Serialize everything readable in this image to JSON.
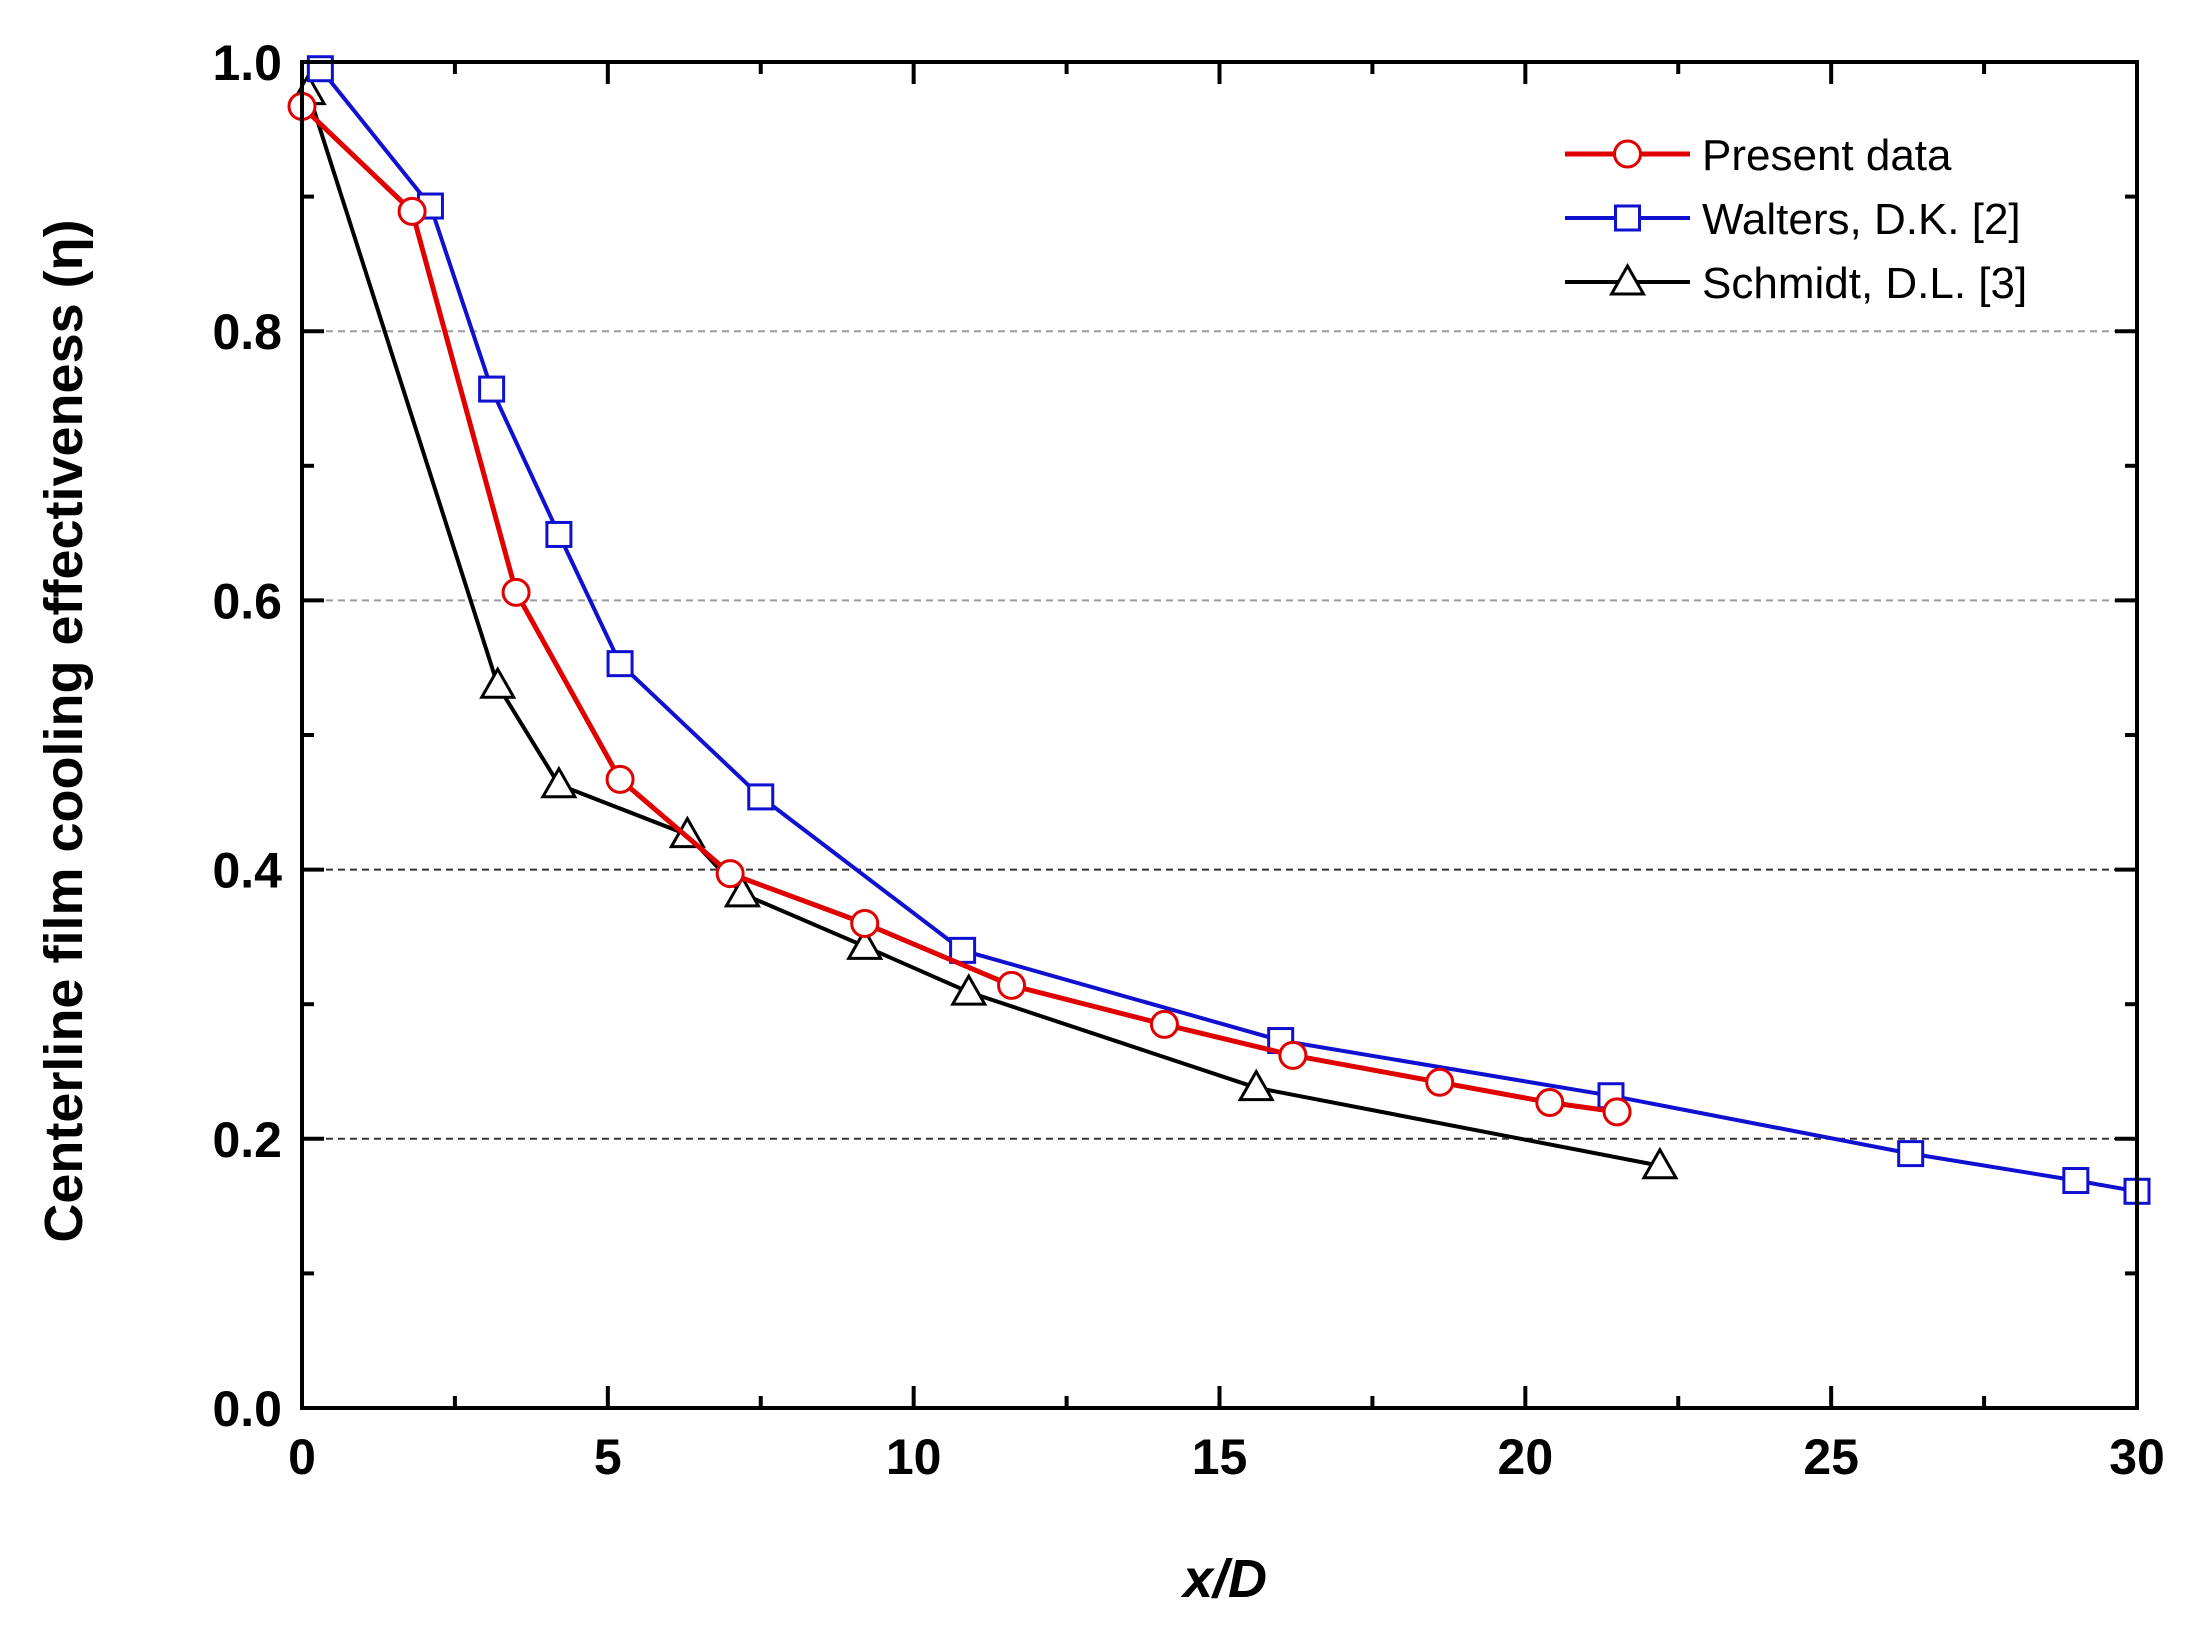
{
  "chart_data": {
    "type": "line",
    "title": "",
    "xlabel": "x/D",
    "ylabel": "Centerline film cooling effectiveness (η)",
    "xlim": [
      0,
      30
    ],
    "ylim": [
      0.0,
      1.0
    ],
    "x_ticks": [
      0,
      5,
      10,
      15,
      20,
      25,
      30
    ],
    "x_tick_labels": [
      "0",
      "5",
      "10",
      "15",
      "20",
      "25",
      "30"
    ],
    "y_ticks": [
      0.0,
      0.2,
      0.4,
      0.6,
      0.8,
      1.0
    ],
    "y_tick_labels": [
      "0.0",
      "0.2",
      "0.4",
      "0.6",
      "0.8",
      "1.0"
    ],
    "grid": "horizontal dashed at 0.2, 0.4, 0.6, 0.8",
    "legend_position": "top-right",
    "series": [
      {
        "name": "Present data",
        "color": "#e00000",
        "marker": "circle",
        "x": [
          0.0,
          1.8,
          3.5,
          5.2,
          7.0,
          9.2,
          11.6,
          14.1,
          16.2,
          18.6,
          20.4,
          21.5
        ],
        "y": [
          0.967,
          0.889,
          0.606,
          0.467,
          0.397,
          0.36,
          0.314,
          0.285,
          0.262,
          0.242,
          0.227,
          0.22
        ]
      },
      {
        "name": "Walters, D.K. [2]",
        "color": "#1010d0",
        "marker": "square",
        "x": [
          0.3,
          2.1,
          3.1,
          4.2,
          5.2,
          7.5,
          10.8,
          16.0,
          21.4,
          26.3,
          29.0,
          30.0
        ],
        "y": [
          0.995,
          0.893,
          0.757,
          0.649,
          0.553,
          0.454,
          0.34,
          0.273,
          0.232,
          0.189,
          0.169,
          0.161
        ]
      },
      {
        "name": "Schmidt, D.L. [3]",
        "color": "#000000",
        "marker": "triangle",
        "x": [
          0.1,
          3.2,
          4.2,
          6.3,
          7.2,
          9.2,
          10.9,
          15.6,
          22.2
        ],
        "y": [
          0.978,
          0.537,
          0.463,
          0.426,
          0.382,
          0.343,
          0.309,
          0.238,
          0.18
        ]
      }
    ]
  }
}
